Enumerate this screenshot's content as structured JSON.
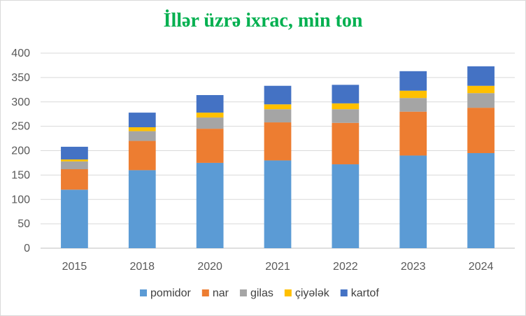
{
  "chart_data": {
    "type": "bar",
    "stacked": true,
    "title": "İllər üzrə ixrac, min ton",
    "categories": [
      "2015",
      "2018",
      "2020",
      "2021",
      "2022",
      "2023",
      "2024"
    ],
    "series": [
      {
        "name": "pomidor",
        "color": "#5b9bd5",
        "values": [
          120,
          160,
          175,
          180,
          172,
          190,
          195
        ]
      },
      {
        "name": "nar",
        "color": "#ed7d31",
        "values": [
          42,
          60,
          70,
          78,
          85,
          90,
          93
        ]
      },
      {
        "name": "gilas",
        "color": "#a5a5a5",
        "values": [
          16,
          20,
          23,
          27,
          28,
          28,
          30
        ]
      },
      {
        "name": "çiyələk",
        "color": "#ffc000",
        "values": [
          4,
          8,
          10,
          10,
          12,
          15,
          15
        ]
      },
      {
        "name": "kartof",
        "color": "#4472c4",
        "values": [
          26,
          30,
          36,
          38,
          38,
          40,
          40
        ]
      }
    ],
    "ylim": [
      0,
      400
    ],
    "ytick_step": 50,
    "grid": true,
    "legend_position": "bottom"
  }
}
